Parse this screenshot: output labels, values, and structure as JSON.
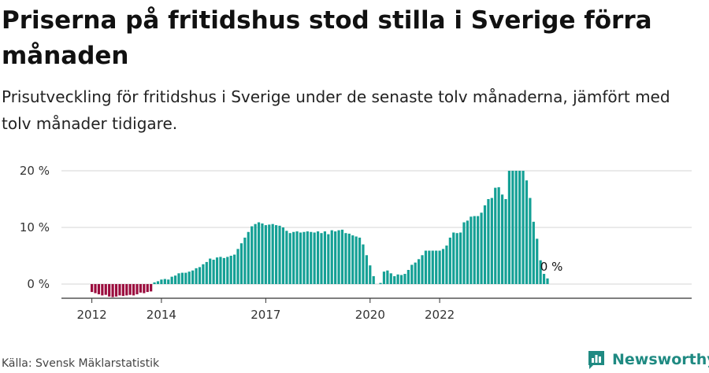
{
  "header": {
    "title": "Priserna på fritidshus stod stilla i Sverige förra månaden",
    "subtitle": "Prisutveckling för fritidshus i Sverige under de senaste tolv månaderna, jämfört med tolv månader tidigare."
  },
  "footer": {
    "source": "Källa: Svensk Mäklarstatistik",
    "brand": "Newsworthy"
  },
  "colors": {
    "positive": "#14a095",
    "negative": "#9b0d3e",
    "grid": "#d6d6d6",
    "axis": "#333333",
    "brand": "#1f8a82"
  },
  "chart_data": {
    "type": "bar",
    "ylim": [
      -2.5,
      20
    ],
    "yticks": [
      0,
      10,
      20
    ],
    "ytick_labels": [
      "0 %",
      "10 %",
      "20 %"
    ],
    "xtick_labels": [
      {
        "label": "2012",
        "index": 0
      },
      {
        "label": "2014",
        "index": 20
      },
      {
        "label": "2017",
        "index": 50
      },
      {
        "label": "2020",
        "index": 80
      },
      {
        "label": "2022",
        "index": 100
      }
    ],
    "grid": true,
    "end_label": "0 %",
    "values": [
      -1.4,
      -1.6,
      -1.8,
      -2.0,
      -1.9,
      -2.2,
      -2.3,
      -2.2,
      -2.0,
      -2.1,
      -2.0,
      -1.9,
      -2.0,
      -1.8,
      -1.5,
      -1.6,
      -1.4,
      -1.3,
      0.3,
      0.5,
      0.8,
      0.9,
      0.8,
      1.3,
      1.5,
      1.9,
      2.0,
      2.0,
      2.2,
      2.4,
      2.8,
      3.0,
      3.5,
      3.9,
      4.5,
      4.3,
      4.7,
      4.8,
      4.6,
      4.8,
      5.0,
      5.2,
      6.2,
      7.2,
      8.2,
      9.2,
      10.2,
      10.6,
      10.9,
      10.7,
      10.4,
      10.5,
      10.6,
      10.4,
      10.3,
      10.0,
      9.4,
      9.0,
      9.2,
      9.3,
      9.1,
      9.2,
      9.3,
      9.2,
      9.1,
      9.3,
      9.0,
      9.3,
      8.8,
      9.5,
      9.3,
      9.5,
      9.6,
      9.0,
      8.9,
      8.6,
      8.4,
      8.2,
      7.0,
      5.1,
      3.3,
      1.4,
      0.0,
      0.2,
      2.2,
      2.4,
      1.9,
      1.4,
      1.7,
      1.6,
      1.8,
      2.5,
      3.4,
      3.8,
      4.4,
      5.1,
      5.9,
      5.9,
      5.9,
      5.9,
      5.9,
      6.2,
      6.8,
      8.2,
      9.1,
      9.0,
      9.1,
      10.9,
      11.2,
      11.9,
      12.0,
      12.0,
      12.6,
      13.9,
      15.0,
      15.2,
      17.0,
      17.1,
      15.8,
      15.0,
      20.0,
      20.0,
      20.0,
      20.0,
      20.0,
      18.3,
      15.2,
      11.0,
      8.0,
      4.2,
      1.8,
      1.0,
      0.0
    ]
  }
}
